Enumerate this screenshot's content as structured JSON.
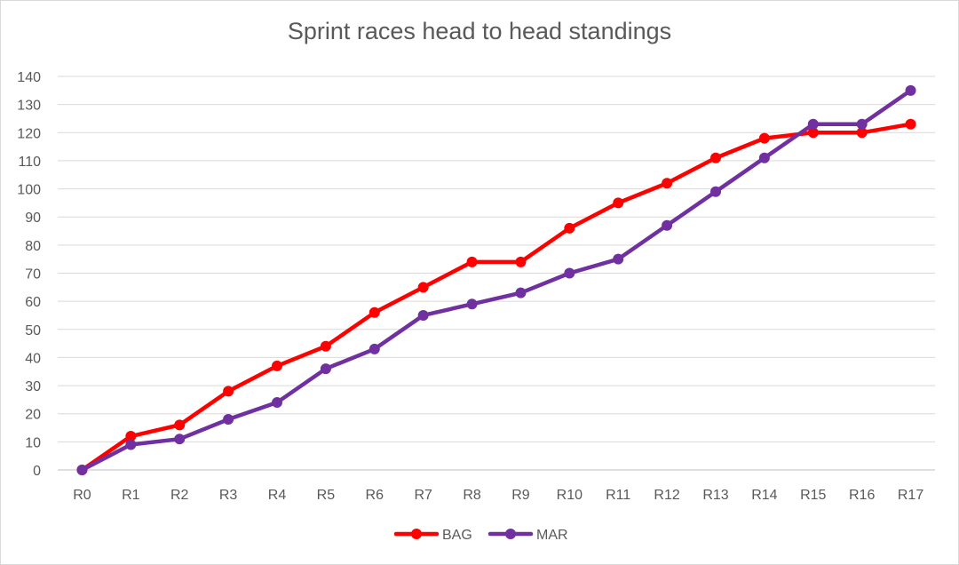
{
  "chart_data": {
    "type": "line",
    "title": "Sprint races head to head standings",
    "xlabel": "",
    "ylabel": "",
    "categories": [
      "R0",
      "R1",
      "R2",
      "R3",
      "R4",
      "R5",
      "R6",
      "R7",
      "R8",
      "R9",
      "R10",
      "R11",
      "R12",
      "R13",
      "R14",
      "R15",
      "R16",
      "R17"
    ],
    "ylim": [
      0,
      140
    ],
    "yticks": [
      "0",
      "10",
      "20",
      "30",
      "40",
      "50",
      "60",
      "70",
      "80",
      "90",
      "100",
      "110",
      "120",
      "130",
      "140"
    ],
    "grid": true,
    "legend_position": "bottom",
    "series": [
      {
        "name": "BAG",
        "color": "#ff0000",
        "values": [
          0,
          12,
          16,
          28,
          37,
          44,
          56,
          65,
          74,
          74,
          86,
          95,
          102,
          111,
          118,
          120,
          120,
          123
        ]
      },
      {
        "name": "MAR",
        "color": "#7030a0",
        "values": [
          0,
          9,
          11,
          18,
          24,
          36,
          43,
          55,
          59,
          63,
          70,
          75,
          87,
          99,
          111,
          123,
          123,
          135
        ]
      }
    ]
  }
}
